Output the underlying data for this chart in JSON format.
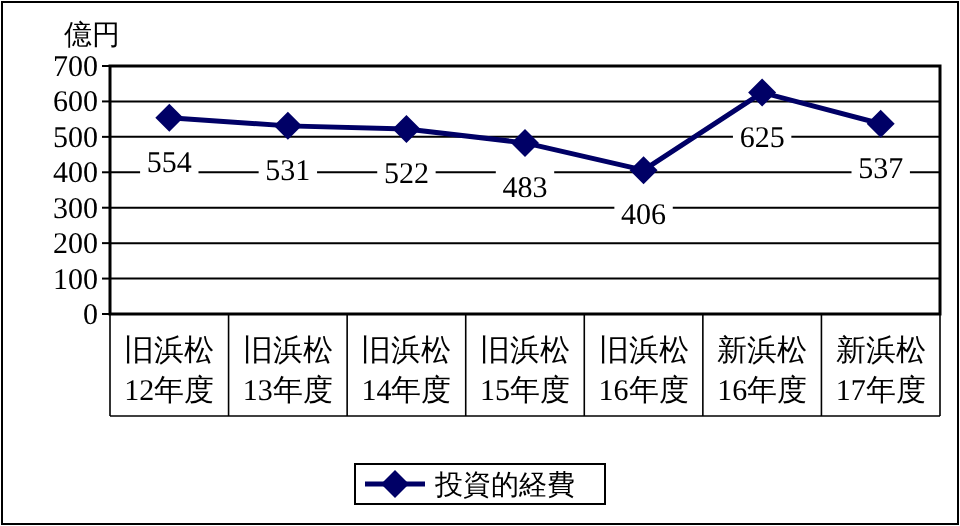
{
  "chart_data": {
    "type": "line",
    "ylabel": "億円",
    "categories": [
      "旧浜松\n12年度",
      "旧浜松\n13年度",
      "旧浜松\n14年度",
      "旧浜松\n15年度",
      "旧浜松\n16年度",
      "新浜松\n16年度",
      "新浜松\n17年度"
    ],
    "series": [
      {
        "name": "投資的経費",
        "color": "#000066",
        "values": [
          554,
          531,
          522,
          483,
          406,
          625,
          537
        ]
      }
    ],
    "ylim": [
      0,
      700
    ],
    "yticks": [
      0,
      100,
      200,
      300,
      400,
      500,
      600,
      700
    ],
    "grid": "y",
    "marker": "diamond",
    "line_style": "solid",
    "data_labels": true,
    "legend": "bottom"
  }
}
